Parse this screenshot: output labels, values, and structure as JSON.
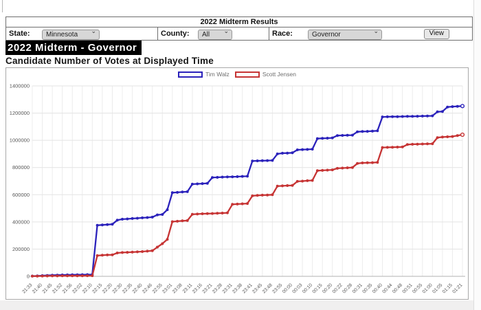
{
  "results_table": {
    "title": "2022 Midterm Results",
    "filters": [
      {
        "label": "State:",
        "value": "Minnesota"
      },
      {
        "label": "County:",
        "value": "All"
      },
      {
        "label": "Race:",
        "value": "Governor"
      }
    ],
    "view_button": "View"
  },
  "heading": {
    "title": "2022 Midterm - Governor",
    "subtitle": "Candidate Number of Votes at Displayed Time"
  },
  "chart_data": {
    "type": "line",
    "title": "Candidate Number of Votes at Displayed Time",
    "xlabel": "",
    "ylabel": "",
    "ylim": [
      0,
      1400000
    ],
    "y_ticks": [
      0,
      200000,
      400000,
      600000,
      800000,
      1000000,
      1200000,
      1400000
    ],
    "grid": true,
    "legend_position": "top-center",
    "points_per_label": 2,
    "last_point_hollow": true,
    "x_tick_labels": [
      "21:33",
      "21:40",
      "21:45",
      "21:52",
      "21:56",
      "22:02",
      "22:10",
      "22:15",
      "22:20",
      "22:30",
      "22:35",
      "22:40",
      "22:46",
      "22:55",
      "23:01",
      "23:08",
      "23:11",
      "23:16",
      "23:21",
      "23:28",
      "23:31",
      "23:38",
      "23:41",
      "23:45",
      "23:48",
      "23:55",
      "00:00",
      "00:03",
      "00:10",
      "00:15",
      "00:20",
      "00:22",
      "00:28",
      "00:31",
      "00:35",
      "00:40",
      "00:44",
      "00:48",
      "00:51",
      "00:55",
      "01:00",
      "01:05",
      "01:15",
      "01:21"
    ],
    "series": [
      {
        "name": "Tim Walz",
        "color": "#2b22bb",
        "values": [
          2000,
          3000,
          5000,
          6500,
          8000,
          9000,
          10000,
          10500,
          11000,
          11500,
          12000,
          12500,
          13000,
          375000,
          378000,
          380000,
          383000,
          413000,
          420000,
          422000,
          425000,
          427000,
          430000,
          432000,
          435000,
          452000,
          455000,
          490000,
          615000,
          617000,
          620000,
          622000,
          678000,
          680000,
          682000,
          684000,
          727000,
          728000,
          730000,
          731000,
          732000,
          733000,
          735000,
          736000,
          848000,
          849000,
          850000,
          851000,
          852000,
          900000,
          905000,
          906000,
          908000,
          930000,
          932000,
          933000,
          935000,
          1013000,
          1015000,
          1016000,
          1018000,
          1035000,
          1036000,
          1037000,
          1038000,
          1063000,
          1065000,
          1066000,
          1068000,
          1070000,
          1172000,
          1173000,
          1174000,
          1174000,
          1175000,
          1176000,
          1176000,
          1177000,
          1178000,
          1179000,
          1180000,
          1210000,
          1212000,
          1245000,
          1248000,
          1250000,
          1252000
        ]
      },
      {
        "name": "Scott Jensen",
        "color": "#c63434",
        "values": [
          1000,
          1500,
          2000,
          2500,
          3000,
          3200,
          3500,
          3700,
          3800,
          4000,
          4200,
          4400,
          4500,
          152000,
          155000,
          157000,
          158000,
          172000,
          175000,
          176500,
          178000,
          180000,
          182000,
          185000,
          188000,
          215000,
          240000,
          272000,
          402000,
          405000,
          408000,
          410000,
          456000,
          458000,
          460000,
          461000,
          462000,
          463500,
          465000,
          467000,
          529000,
          531000,
          533000,
          535000,
          592000,
          595000,
          597000,
          598000,
          600000,
          663000,
          665000,
          667000,
          668000,
          698000,
          700000,
          703000,
          705000,
          777000,
          779000,
          781000,
          783000,
          794000,
          796000,
          798000,
          800000,
          830000,
          834000,
          835000,
          836000,
          838000,
          947000,
          948000,
          949000,
          950000,
          951000,
          969000,
          971000,
          972000,
          973000,
          974000,
          975000,
          1020000,
          1024000,
          1026000,
          1028000,
          1035000,
          1041000
        ]
      }
    ]
  }
}
